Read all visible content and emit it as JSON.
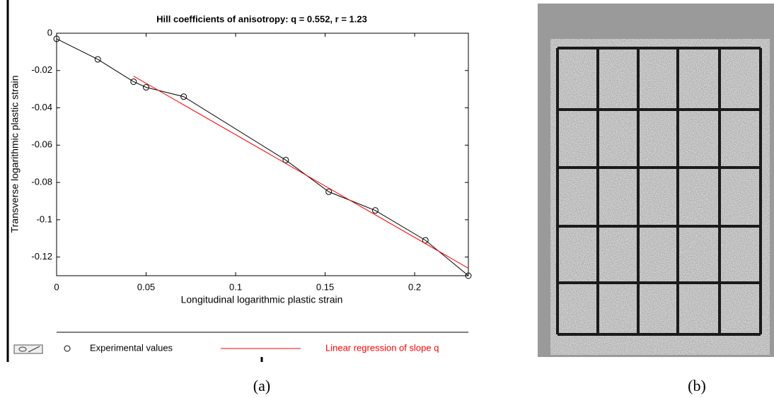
{
  "chart_data": {
    "type": "line",
    "title": "Hill coefficients of anisotropy:  q = 0.552,  r = 1.23",
    "x_label": "Longitudinal logarithmic plastic strain",
    "y_label": "Transverse logarithmic plastic strain",
    "xlim": [
      0,
      0.23
    ],
    "ylim": [
      -0.13,
      0
    ],
    "xticks": [
      0,
      0.05,
      0.1,
      0.15,
      0.2
    ],
    "yticks": [
      0,
      -0.02,
      -0.04,
      -0.06,
      -0.08,
      -0.1,
      -0.12
    ],
    "series": [
      {
        "name": "Experimental values",
        "color": "#000000",
        "marker": "circle",
        "x": [
          0,
          0.023,
          0.043,
          0.05,
          0.071,
          0.128,
          0.152,
          0.178,
          0.206,
          0.23
        ],
        "values": [
          -0.003,
          -0.014,
          -0.026,
          -0.029,
          -0.034,
          -0.068,
          -0.085,
          -0.095,
          -0.111,
          -0.13
        ]
      },
      {
        "name": "Linear regression of slope q",
        "color": "#ff0000",
        "x": [
          0.043,
          0.23
        ],
        "values": [
          -0.023,
          -0.126
        ]
      }
    ]
  },
  "captions": {
    "a": "(a)",
    "b": "(b)"
  }
}
